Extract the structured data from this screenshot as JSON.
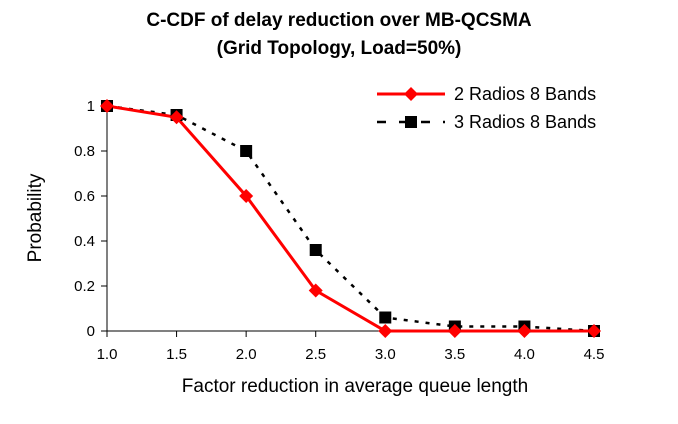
{
  "chart_data": {
    "type": "line",
    "title": "C-CDF of delay reduction over MB-QCSMA",
    "subtitle": "(Grid Topology, Load=50%)",
    "xlabel": "Factor reduction in average queue length",
    "ylabel": "Probability",
    "x": [
      1.0,
      1.5,
      2.0,
      2.5,
      3.0,
      3.5,
      4.0,
      4.5
    ],
    "x_tick_labels": [
      "1.0",
      "1.5",
      "2.0",
      "2.5",
      "3.0",
      "3.5",
      "4.0",
      "4.5"
    ],
    "y_ticks": [
      0,
      0.2,
      0.4,
      0.6,
      0.8,
      1
    ],
    "y_tick_labels": [
      "0",
      "0.2",
      "0.4",
      "0.6",
      "0.8",
      "1"
    ],
    "xlim": [
      1.0,
      4.5
    ],
    "ylim": [
      0,
      1
    ],
    "legend_position": "top-right",
    "series": [
      {
        "name": "2 Radios 8 Bands",
        "color": "#ff0000",
        "style": "solid",
        "marker": "diamond",
        "values": [
          1.0,
          0.95,
          0.6,
          0.18,
          0.0,
          0.0,
          0.0,
          0.0
        ]
      },
      {
        "name": "3 Radios 8 Bands",
        "color": "#000000",
        "style": "dashed",
        "marker": "square",
        "values": [
          1.0,
          0.96,
          0.8,
          0.36,
          0.06,
          0.02,
          0.02,
          0.0
        ]
      }
    ]
  }
}
